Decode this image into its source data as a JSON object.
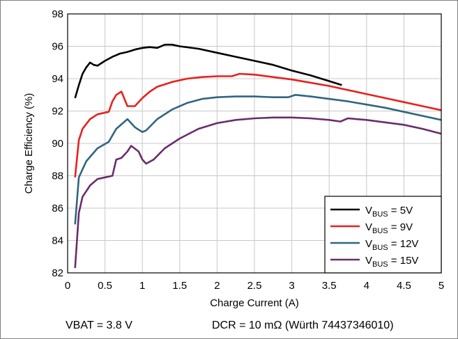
{
  "chart_data": {
    "type": "line",
    "xlabel": "Charge Current (A)",
    "ylabel": "Charge Efficiency (%)",
    "xlim": [
      0,
      5
    ],
    "ylim": [
      82,
      98
    ],
    "xticks": [
      "0",
      "0.5",
      "1",
      "1.5",
      "2",
      "2.5",
      "3",
      "3.5",
      "4",
      "4.5",
      "5"
    ],
    "yticks": [
      "82",
      "84",
      "86",
      "88",
      "90",
      "92",
      "94",
      "96",
      "98"
    ],
    "grid": true,
    "legend_position": "bottom-right",
    "series": [
      {
        "name": "VBUS = 5V",
        "label_main": "V",
        "label_sub": "BUS",
        "label_rest": " = 5V",
        "color": "#000000",
        "points": [
          [
            0.1,
            92.8
          ],
          [
            0.15,
            93.6
          ],
          [
            0.2,
            94.3
          ],
          [
            0.25,
            94.7
          ],
          [
            0.3,
            95.0
          ],
          [
            0.35,
            94.85
          ],
          [
            0.4,
            94.8
          ],
          [
            0.5,
            95.1
          ],
          [
            0.6,
            95.35
          ],
          [
            0.65,
            95.45
          ],
          [
            0.7,
            95.55
          ],
          [
            0.8,
            95.65
          ],
          [
            0.9,
            95.8
          ],
          [
            1.0,
            95.9
          ],
          [
            1.1,
            95.95
          ],
          [
            1.2,
            95.9
          ],
          [
            1.3,
            96.1
          ],
          [
            1.4,
            96.1
          ],
          [
            1.5,
            96.0
          ],
          [
            1.75,
            95.85
          ],
          [
            2.0,
            95.6
          ],
          [
            2.25,
            95.35
          ],
          [
            2.5,
            95.1
          ],
          [
            2.75,
            94.85
          ],
          [
            3.0,
            94.5
          ],
          [
            3.25,
            94.2
          ],
          [
            3.5,
            93.85
          ],
          [
            3.67,
            93.6
          ]
        ]
      },
      {
        "name": "VBUS = 9V",
        "label_main": "V",
        "label_sub": "BUS",
        "label_rest": " = 9V",
        "color": "#e8211d",
        "points": [
          [
            0.1,
            87.9
          ],
          [
            0.15,
            90.2
          ],
          [
            0.2,
            90.9
          ],
          [
            0.3,
            91.5
          ],
          [
            0.4,
            91.8
          ],
          [
            0.5,
            91.9
          ],
          [
            0.55,
            91.95
          ],
          [
            0.6,
            92.6
          ],
          [
            0.65,
            93.0
          ],
          [
            0.72,
            93.2
          ],
          [
            0.8,
            92.3
          ],
          [
            0.9,
            92.3
          ],
          [
            1.0,
            92.8
          ],
          [
            1.1,
            93.2
          ],
          [
            1.2,
            93.5
          ],
          [
            1.4,
            93.8
          ],
          [
            1.6,
            94.0
          ],
          [
            1.8,
            94.1
          ],
          [
            2.0,
            94.15
          ],
          [
            2.2,
            94.15
          ],
          [
            2.3,
            94.3
          ],
          [
            2.5,
            94.25
          ],
          [
            2.75,
            94.1
          ],
          [
            3.0,
            93.95
          ],
          [
            3.25,
            93.75
          ],
          [
            3.5,
            93.55
          ],
          [
            3.75,
            93.3
          ],
          [
            4.0,
            93.05
          ],
          [
            4.25,
            92.8
          ],
          [
            4.5,
            92.55
          ],
          [
            4.75,
            92.3
          ],
          [
            5.0,
            92.05
          ]
        ]
      },
      {
        "name": "VBUS = 12V",
        "label_main": "V",
        "label_sub": "BUS",
        "label_rest": " = 12V",
        "color": "#2f6680",
        "points": [
          [
            0.1,
            85.0
          ],
          [
            0.15,
            87.9
          ],
          [
            0.25,
            88.9
          ],
          [
            0.4,
            89.7
          ],
          [
            0.55,
            90.1
          ],
          [
            0.65,
            90.9
          ],
          [
            0.8,
            91.5
          ],
          [
            0.9,
            91.0
          ],
          [
            1.0,
            90.7
          ],
          [
            1.05,
            90.8
          ],
          [
            1.2,
            91.5
          ],
          [
            1.4,
            92.1
          ],
          [
            1.6,
            92.5
          ],
          [
            1.8,
            92.75
          ],
          [
            2.0,
            92.85
          ],
          [
            2.25,
            92.9
          ],
          [
            2.5,
            92.9
          ],
          [
            2.75,
            92.85
          ],
          [
            2.95,
            92.85
          ],
          [
            3.05,
            93.0
          ],
          [
            3.25,
            92.9
          ],
          [
            3.5,
            92.75
          ],
          [
            3.75,
            92.6
          ],
          [
            4.0,
            92.4
          ],
          [
            4.25,
            92.2
          ],
          [
            4.5,
            91.95
          ],
          [
            4.75,
            91.7
          ],
          [
            5.0,
            91.45
          ]
        ]
      },
      {
        "name": "VBUS = 15V",
        "label_main": "V",
        "label_sub": "BUS",
        "label_rest": " = 15V",
        "color": "#6a2c6c",
        "points": [
          [
            0.1,
            82.3
          ],
          [
            0.15,
            85.7
          ],
          [
            0.2,
            86.7
          ],
          [
            0.3,
            87.4
          ],
          [
            0.4,
            87.8
          ],
          [
            0.5,
            87.9
          ],
          [
            0.6,
            88.0
          ],
          [
            0.65,
            89.0
          ],
          [
            0.72,
            89.1
          ],
          [
            0.8,
            89.5
          ],
          [
            0.85,
            89.85
          ],
          [
            0.95,
            89.5
          ],
          [
            1.0,
            89.0
          ],
          [
            1.05,
            88.75
          ],
          [
            1.15,
            89.0
          ],
          [
            1.3,
            89.7
          ],
          [
            1.5,
            90.3
          ],
          [
            1.75,
            90.9
          ],
          [
            2.0,
            91.25
          ],
          [
            2.25,
            91.45
          ],
          [
            2.5,
            91.55
          ],
          [
            2.75,
            91.6
          ],
          [
            3.0,
            91.6
          ],
          [
            3.25,
            91.55
          ],
          [
            3.5,
            91.45
          ],
          [
            3.65,
            91.35
          ],
          [
            3.75,
            91.55
          ],
          [
            4.0,
            91.45
          ],
          [
            4.25,
            91.3
          ],
          [
            4.5,
            91.15
          ],
          [
            4.75,
            90.9
          ],
          [
            5.0,
            90.6
          ]
        ]
      }
    ]
  },
  "footer": {
    "left": "VBAT = 3.8 V",
    "right": "DCR = 10 mΩ (Würth 74437346010)"
  }
}
